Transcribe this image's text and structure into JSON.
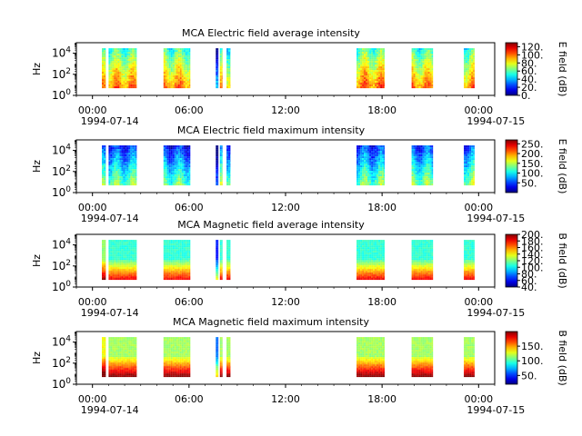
{
  "figure": {
    "background": "#ffffff",
    "colormap": "jet"
  },
  "chart_data": [
    {
      "type": "heatmap",
      "title": "MCA  Electric field average intensity",
      "ylabel": "Hz",
      "yscale": "log",
      "ylim": [
        1,
        100000
      ],
      "yticks": [
        {
          "value": 1,
          "base": "10",
          "exp": "0"
        },
        {
          "value": 100,
          "base": "10",
          "exp": "2"
        },
        {
          "value": 10000,
          "base": "10",
          "exp": "4"
        }
      ],
      "xlim": [
        "1994-07-13T23:00",
        "1994-07-15T01:00"
      ],
      "xticks": [
        {
          "value": "1994-07-14T00:00",
          "label": "00:00",
          "sublabel": "1994-07-14"
        },
        {
          "value": "1994-07-14T06:00",
          "label": "06:00",
          "sublabel": ""
        },
        {
          "value": "1994-07-14T12:00",
          "label": "12:00",
          "sublabel": ""
        },
        {
          "value": "1994-07-14T18:00",
          "label": "18:00",
          "sublabel": ""
        },
        {
          "value": "1994-07-15T00:00",
          "label": "00:00",
          "sublabel": "1994-07-15"
        }
      ],
      "colorbar": {
        "label": "E field (dB)",
        "range": [
          0,
          130
        ],
        "ticks": [
          {
            "value": 0,
            "label": "0."
          },
          {
            "value": 20,
            "label": "20."
          },
          {
            "value": 40,
            "label": "40."
          },
          {
            "value": 60,
            "label": "60."
          },
          {
            "value": 80,
            "label": "80."
          },
          {
            "value": 100,
            "label": "100."
          },
          {
            "value": 120,
            "label": "120."
          }
        ]
      },
      "data_freq_range": [
        5,
        30000
      ],
      "blocks": [
        {
          "start": "1994-07-14T00:35",
          "end": "1994-07-14T00:50",
          "level": 70
        },
        {
          "start": "1994-07-14T01:00",
          "end": "1994-07-14T02:45",
          "level": 75
        },
        {
          "start": "1994-07-14T04:25",
          "end": "1994-07-14T06:05",
          "level": 75
        },
        {
          "start": "1994-07-14T07:40",
          "end": "1994-07-14T07:50",
          "level": 30
        },
        {
          "start": "1994-07-14T07:55",
          "end": "1994-07-14T08:05",
          "level": 70
        },
        {
          "start": "1994-07-14T08:20",
          "end": "1994-07-14T08:35",
          "level": 70
        },
        {
          "start": "1994-07-14T16:25",
          "end": "1994-07-14T18:10",
          "level": 78
        },
        {
          "start": "1994-07-14T19:50",
          "end": "1994-07-14T21:10",
          "level": 75
        },
        {
          "start": "1994-07-14T23:05",
          "end": "1994-07-14T23:45",
          "level": 75
        }
      ]
    },
    {
      "type": "heatmap",
      "title": "MCA  Electric field maximum intensity",
      "ylabel": "Hz",
      "yscale": "log",
      "ylim": [
        1,
        100000
      ],
      "yticks": [
        {
          "value": 1,
          "base": "10",
          "exp": "0"
        },
        {
          "value": 100,
          "base": "10",
          "exp": "2"
        },
        {
          "value": 10000,
          "base": "10",
          "exp": "4"
        }
      ],
      "xlim": [
        "1994-07-13T23:00",
        "1994-07-15T01:00"
      ],
      "xticks": [
        {
          "value": "1994-07-14T00:00",
          "label": "00:00",
          "sublabel": "1994-07-14"
        },
        {
          "value": "1994-07-14T06:00",
          "label": "06:00",
          "sublabel": ""
        },
        {
          "value": "1994-07-14T12:00",
          "label": "12:00",
          "sublabel": ""
        },
        {
          "value": "1994-07-14T18:00",
          "label": "18:00",
          "sublabel": ""
        },
        {
          "value": "1994-07-15T00:00",
          "label": "00:00",
          "sublabel": "1994-07-15"
        }
      ],
      "colorbar": {
        "label": "E field (dB)",
        "range": [
          0,
          270
        ],
        "ticks": [
          {
            "value": 50,
            "label": "50."
          },
          {
            "value": 100,
            "label": "100."
          },
          {
            "value": 150,
            "label": "150."
          },
          {
            "value": 200,
            "label": "200."
          },
          {
            "value": 250,
            "label": "250."
          }
        ]
      },
      "data_freq_range": [
        5,
        30000
      ],
      "blocks": [
        {
          "start": "1994-07-14T00:35",
          "end": "1994-07-14T00:50",
          "level": 80
        },
        {
          "start": "1994-07-14T01:00",
          "end": "1994-07-14T02:45",
          "level": 85
        },
        {
          "start": "1994-07-14T04:25",
          "end": "1994-07-14T06:05",
          "level": 80
        },
        {
          "start": "1994-07-14T07:40",
          "end": "1994-07-14T07:50",
          "level": 40
        },
        {
          "start": "1994-07-14T07:55",
          "end": "1994-07-14T08:05",
          "level": 95
        },
        {
          "start": "1994-07-14T08:20",
          "end": "1994-07-14T08:35",
          "level": 95
        },
        {
          "start": "1994-07-14T16:25",
          "end": "1994-07-14T18:10",
          "level": 85
        },
        {
          "start": "1994-07-14T19:50",
          "end": "1994-07-14T21:10",
          "level": 90
        },
        {
          "start": "1994-07-14T23:05",
          "end": "1994-07-14T23:45",
          "level": 95
        }
      ]
    },
    {
      "type": "heatmap",
      "title": "MCA  Magnetic field average intensity",
      "ylabel": "Hz",
      "yscale": "log",
      "ylim": [
        1,
        100000
      ],
      "yticks": [
        {
          "value": 1,
          "base": "10",
          "exp": "0"
        },
        {
          "value": 100,
          "base": "10",
          "exp": "2"
        },
        {
          "value": 10000,
          "base": "10",
          "exp": "4"
        }
      ],
      "xlim": [
        "1994-07-13T23:00",
        "1994-07-15T01:00"
      ],
      "xticks": [
        {
          "value": "1994-07-14T00:00",
          "label": "00:00",
          "sublabel": "1994-07-14"
        },
        {
          "value": "1994-07-14T06:00",
          "label": "06:00",
          "sublabel": ""
        },
        {
          "value": "1994-07-14T12:00",
          "label": "12:00",
          "sublabel": ""
        },
        {
          "value": "1994-07-14T18:00",
          "label": "18:00",
          "sublabel": ""
        },
        {
          "value": "1994-07-15T00:00",
          "label": "00:00",
          "sublabel": "1994-07-15"
        }
      ],
      "colorbar": {
        "label": "B field (dB)",
        "range": [
          40,
          200
        ],
        "ticks": [
          {
            "value": 40,
            "label": "40."
          },
          {
            "value": 60,
            "label": "60."
          },
          {
            "value": 80,
            "label": "80."
          },
          {
            "value": 100,
            "label": "100."
          },
          {
            "value": 120,
            "label": "120."
          },
          {
            "value": 140,
            "label": "140."
          },
          {
            "value": 160,
            "label": "160."
          },
          {
            "value": 180,
            "label": "180."
          },
          {
            "value": 200,
            "label": "200."
          }
        ]
      },
      "data_freq_range": [
        5,
        30000
      ],
      "blocks": [
        {
          "start": "1994-07-14T00:35",
          "end": "1994-07-14T00:50",
          "level": 130
        },
        {
          "start": "1994-07-14T01:00",
          "end": "1994-07-14T02:45",
          "level": 115
        },
        {
          "start": "1994-07-14T04:25",
          "end": "1994-07-14T06:05",
          "level": 115
        },
        {
          "start": "1994-07-14T07:40",
          "end": "1994-07-14T07:50",
          "level": 70
        },
        {
          "start": "1994-07-14T07:55",
          "end": "1994-07-14T08:05",
          "level": 115
        },
        {
          "start": "1994-07-14T08:20",
          "end": "1994-07-14T08:35",
          "level": 115
        },
        {
          "start": "1994-07-14T16:25",
          "end": "1994-07-14T18:10",
          "level": 115
        },
        {
          "start": "1994-07-14T19:50",
          "end": "1994-07-14T21:10",
          "level": 115
        },
        {
          "start": "1994-07-14T23:05",
          "end": "1994-07-14T23:45",
          "level": 115
        }
      ]
    },
    {
      "type": "heatmap",
      "title": "MCA  Magnetic field maximum intensity",
      "ylabel": "Hz",
      "yscale": "log",
      "ylim": [
        1,
        100000
      ],
      "yticks": [
        {
          "value": 1,
          "base": "10",
          "exp": "0"
        },
        {
          "value": 100,
          "base": "10",
          "exp": "2"
        },
        {
          "value": 10000,
          "base": "10",
          "exp": "4"
        }
      ],
      "xlim": [
        "1994-07-13T23:00",
        "1994-07-15T01:00"
      ],
      "xticks": [
        {
          "value": "1994-07-14T00:00",
          "label": "00:00",
          "sublabel": "1994-07-14"
        },
        {
          "value": "1994-07-14T06:00",
          "label": "06:00",
          "sublabel": ""
        },
        {
          "value": "1994-07-14T12:00",
          "label": "12:00",
          "sublabel": ""
        },
        {
          "value": "1994-07-14T18:00",
          "label": "18:00",
          "sublabel": ""
        },
        {
          "value": "1994-07-15T00:00",
          "label": "00:00",
          "sublabel": "1994-07-15"
        }
      ],
      "colorbar": {
        "label": "B field (dB)",
        "range": [
          20,
          200
        ],
        "ticks": [
          {
            "value": 50,
            "label": "50."
          },
          {
            "value": 100,
            "label": "100."
          },
          {
            "value": 150,
            "label": "150."
          }
        ]
      },
      "data_freq_range": [
        5,
        30000
      ],
      "blocks": [
        {
          "start": "1994-07-14T00:35",
          "end": "1994-07-14T00:50",
          "level": 140
        },
        {
          "start": "1994-07-14T01:00",
          "end": "1994-07-14T02:45",
          "level": 125
        },
        {
          "start": "1994-07-14T04:25",
          "end": "1994-07-14T06:05",
          "level": 125
        },
        {
          "start": "1994-07-14T07:40",
          "end": "1994-07-14T07:50",
          "level": 70
        },
        {
          "start": "1994-07-14T07:55",
          "end": "1994-07-14T08:05",
          "level": 125
        },
        {
          "start": "1994-07-14T08:20",
          "end": "1994-07-14T08:35",
          "level": 125
        },
        {
          "start": "1994-07-14T16:25",
          "end": "1994-07-14T18:10",
          "level": 125
        },
        {
          "start": "1994-07-14T19:50",
          "end": "1994-07-14T21:10",
          "level": 125
        },
        {
          "start": "1994-07-14T23:05",
          "end": "1994-07-14T23:45",
          "level": 125
        }
      ]
    }
  ]
}
